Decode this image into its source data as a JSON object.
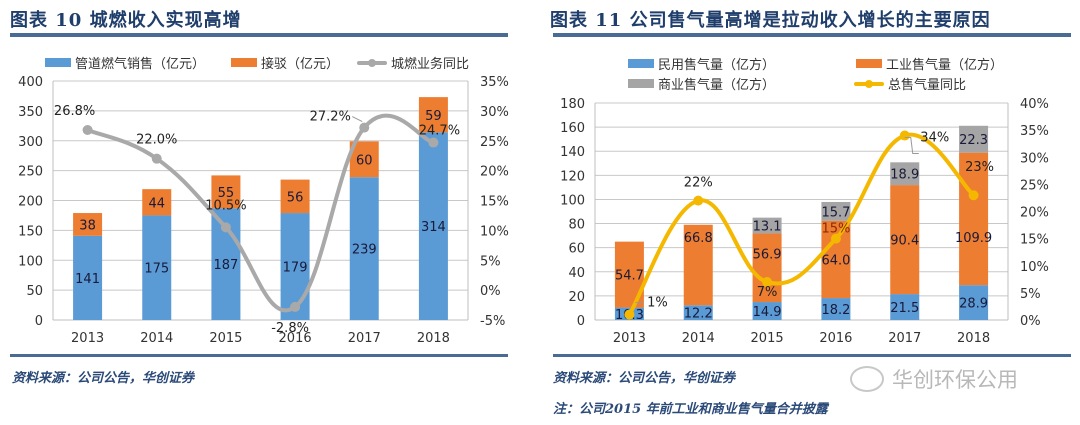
{
  "panel1": {
    "title": "图表 10   城燃收入实现高增",
    "source": "资料来源：公司公告，华创证券"
  },
  "panel2": {
    "title": "图表 11   公司售气量高增是拉动收入增长的主要原因",
    "source": "资料来源：公司公告，华创证券",
    "note": "注：公司2015 年前工业和商业售气量合并披露"
  },
  "watermark": {
    "text": "华创环保公用",
    "icon": "wechat-icon"
  },
  "colors": {
    "blue": "#5b9bd5",
    "orange": "#ed7d31",
    "gray": "#a5a5a5",
    "gold": "#f5b800",
    "grayline": "#a9a9a9",
    "title": "#1f3e6b"
  },
  "chart_data": [
    {
      "type": "bar",
      "stacked": true,
      "title": "城燃收入实现高增",
      "categories": [
        "2013",
        "2014",
        "2015",
        "2016",
        "2017",
        "2018"
      ],
      "series": [
        {
          "name": "管道燃气销售（亿元）",
          "kind": "bar",
          "axis": "left",
          "color": "#5b9bd5",
          "values": [
            141,
            175,
            187,
            179,
            239,
            314
          ],
          "labels": [
            "141",
            "175",
            "187",
            "179",
            "239",
            "314"
          ]
        },
        {
          "name": "接驳（亿元）",
          "kind": "bar",
          "axis": "left",
          "color": "#ed7d31",
          "values": [
            38,
            44,
            55,
            56,
            60,
            59
          ],
          "labels": [
            "38",
            "44",
            "55",
            "56",
            "60",
            "59"
          ]
        },
        {
          "name": "城燃业务同比",
          "kind": "line",
          "axis": "right",
          "color": "#a9a9a9",
          "values": [
            26.8,
            22.0,
            10.5,
            -2.8,
            27.2,
            24.7
          ],
          "labels": [
            "26.8%",
            "22.0%",
            "10.5%",
            "-2.8%",
            "27.2%",
            "24.7%"
          ]
        }
      ],
      "ylim": [
        0,
        400
      ],
      "yticks": [
        "0",
        "50",
        "100",
        "150",
        "200",
        "250",
        "300",
        "350",
        "400"
      ],
      "y2lim": [
        -5,
        35
      ],
      "y2ticks": [
        "-5%",
        "0%",
        "5%",
        "10%",
        "15%",
        "20%",
        "25%",
        "30%",
        "35%"
      ],
      "grid": true,
      "legend": "top"
    },
    {
      "type": "bar",
      "stacked": true,
      "title": "公司售气量高增是拉动收入增长的主要原因",
      "categories": [
        "2013",
        "2014",
        "2015",
        "2016",
        "2017",
        "2018"
      ],
      "series": [
        {
          "name": "民用售气量（亿方）",
          "kind": "bar",
          "axis": "left",
          "color": "#5b9bd5",
          "values": [
            10.3,
            12.2,
            14.9,
            18.2,
            21.5,
            28.9
          ],
          "labels": [
            "10.3",
            "12.2",
            "14.9",
            "18.2",
            "21.5",
            "28.9"
          ]
        },
        {
          "name": "工业售气量（亿方）",
          "kind": "bar",
          "axis": "left",
          "color": "#ed7d31",
          "values": [
            54.7,
            66.8,
            56.9,
            64.0,
            90.4,
            109.9
          ],
          "labels": [
            "54.7",
            "66.8",
            "56.9",
            "64.0",
            "90.4",
            "109.9"
          ]
        },
        {
          "name": "商业售气量（亿方）",
          "kind": "bar",
          "axis": "left",
          "color": "#a5a5a5",
          "values": [
            0,
            0,
            13.1,
            15.7,
            18.9,
            22.3
          ],
          "labels": [
            "",
            "",
            "13.1",
            "15.7",
            "18.9",
            "22.3"
          ]
        },
        {
          "name": "总售气量同比",
          "kind": "line",
          "axis": "right",
          "color": "#f5b800",
          "values": [
            1,
            22,
            7,
            15,
            34,
            23
          ],
          "labels": [
            "1%",
            "22%",
            "7%",
            "15%",
            "34%",
            "23%"
          ]
        }
      ],
      "ylim": [
        0,
        180
      ],
      "yticks": [
        "0",
        "20",
        "40",
        "60",
        "80",
        "100",
        "120",
        "140",
        "160",
        "180"
      ],
      "y2lim": [
        0,
        40
      ],
      "y2ticks": [
        "0%",
        "5%",
        "10%",
        "15%",
        "20%",
        "25%",
        "30%",
        "35%",
        "40%"
      ],
      "grid": true,
      "legend": "top"
    }
  ]
}
